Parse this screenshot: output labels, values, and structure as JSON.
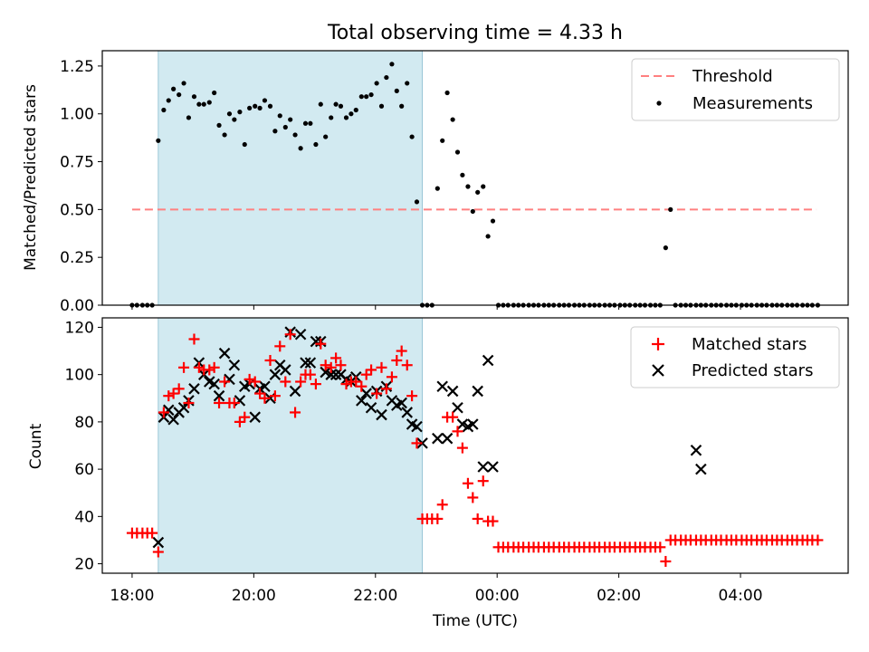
{
  "figure": {
    "title": "Total observing time = 4.33 h",
    "xlabel": "Time (UTC)",
    "xticks": [
      "18:00",
      "20:00",
      "22:00",
      "00:00",
      "02:00",
      "04:00"
    ],
    "shade_color": "#add8e6",
    "shaded_interval_h": [
      18.43,
      22.77
    ]
  },
  "chart_data": [
    {
      "type": "scatter",
      "ylabel": "Matched/Predicted stars",
      "ylim": [
        0,
        1.33
      ],
      "yticks": [
        "0.00",
        "0.25",
        "0.50",
        "0.75",
        "1.00",
        "1.25"
      ],
      "threshold": {
        "name": "Threshold",
        "value": 0.5,
        "x_range_h": [
          18.0,
          29.25
        ],
        "color": "#ff8080"
      },
      "series": [
        {
          "name": "Measurements",
          "color": "#000000",
          "x": [
            18.0,
            18.08,
            18.17,
            18.25,
            18.33,
            18.43,
            18.52,
            18.6,
            18.68,
            18.77,
            18.85,
            18.93,
            19.02,
            19.1,
            19.18,
            19.27,
            19.35,
            19.43,
            19.52,
            19.6,
            19.68,
            19.77,
            19.85,
            19.93,
            20.02,
            20.1,
            20.18,
            20.27,
            20.35,
            20.43,
            20.52,
            20.6,
            20.68,
            20.77,
            20.85,
            20.93,
            21.02,
            21.1,
            21.18,
            21.27,
            21.35,
            21.43,
            21.52,
            21.6,
            21.68,
            21.77,
            21.85,
            21.93,
            22.02,
            22.1,
            22.18,
            22.27,
            22.35,
            22.43,
            22.52,
            22.6,
            22.68,
            22.77,
            22.85,
            22.93,
            23.02,
            23.1,
            23.18,
            23.27,
            23.35,
            23.43,
            23.52,
            23.6,
            23.68,
            23.77,
            23.85,
            23.93,
            24.02,
            24.1,
            24.18,
            24.27,
            24.35,
            24.43,
            24.52,
            24.6,
            24.68,
            24.77,
            24.85,
            24.93,
            25.02,
            25.1,
            25.18,
            25.27,
            25.35,
            25.43,
            25.52,
            25.6,
            25.68,
            25.77,
            25.85,
            25.93,
            26.02,
            26.1,
            26.18,
            26.27,
            26.35,
            26.43,
            26.52,
            26.6,
            26.68,
            26.77,
            26.85,
            26.93,
            27.02,
            27.1,
            27.18,
            27.27,
            27.35,
            27.43,
            27.52,
            27.6,
            27.68,
            27.77,
            27.85,
            27.93,
            28.02,
            28.1,
            28.18,
            28.27,
            28.35,
            28.43,
            28.52,
            28.6,
            28.68,
            28.77,
            28.85,
            28.93,
            29.02,
            29.1,
            29.18,
            29.27
          ],
          "y": [
            0,
            0,
            0,
            0,
            0,
            0.86,
            1.02,
            1.07,
            1.13,
            1.1,
            1.16,
            0.98,
            1.09,
            1.05,
            1.05,
            1.06,
            1.11,
            0.94,
            0.89,
            1.0,
            0.97,
            1.01,
            0.84,
            1.03,
            1.04,
            1.03,
            1.07,
            1.04,
            0.91,
            0.99,
            0.93,
            0.97,
            0.89,
            0.82,
            0.95,
            0.95,
            0.84,
            1.05,
            0.88,
            0.98,
            1.05,
            1.04,
            0.98,
            1.0,
            1.02,
            1.09,
            1.09,
            1.1,
            1.16,
            1.04,
            1.19,
            1.26,
            1.12,
            1.04,
            1.16,
            0.88,
            0.54,
            0,
            0,
            0,
            0.61,
            0.86,
            1.11,
            0.97,
            0.8,
            0.68,
            0.62,
            0.49,
            0.59,
            0.62,
            0.36,
            0.44,
            0,
            0,
            0,
            0,
            0,
            0,
            0,
            0,
            0,
            0,
            0,
            0,
            0,
            0,
            0,
            0,
            0,
            0,
            0,
            0,
            0,
            0,
            0,
            0,
            0,
            0,
            0,
            0,
            0,
            0,
            0,
            0,
            0,
            0.3,
            0.5,
            0,
            0,
            0,
            0,
            0,
            0,
            0,
            0,
            0,
            0,
            0,
            0,
            0,
            0,
            0,
            0,
            0,
            0,
            0,
            0,
            0,
            0,
            0,
            0,
            0,
            0,
            0,
            0,
            0
          ]
        }
      ]
    },
    {
      "type": "scatter",
      "ylabel": "Count",
      "ylim": [
        16,
        124
      ],
      "yticks": [
        "20",
        "40",
        "60",
        "80",
        "100",
        "120"
      ],
      "series": [
        {
          "name": "Matched stars",
          "marker": "+",
          "color": "#ff0000",
          "x": [
            18.0,
            18.08,
            18.17,
            18.25,
            18.33,
            18.43,
            18.52,
            18.6,
            18.68,
            18.77,
            18.85,
            18.93,
            19.02,
            19.1,
            19.18,
            19.27,
            19.35,
            19.43,
            19.52,
            19.6,
            19.68,
            19.77,
            19.85,
            19.93,
            20.02,
            20.1,
            20.18,
            20.27,
            20.35,
            20.43,
            20.52,
            20.6,
            20.68,
            20.77,
            20.85,
            20.93,
            21.02,
            21.1,
            21.18,
            21.27,
            21.35,
            21.43,
            21.52,
            21.6,
            21.68,
            21.77,
            21.85,
            21.93,
            22.02,
            22.1,
            22.18,
            22.27,
            22.35,
            22.43,
            22.52,
            22.6,
            22.68,
            22.77,
            22.85,
            22.93,
            23.02,
            23.1,
            23.18,
            23.27,
            23.35,
            23.43,
            23.52,
            23.6,
            23.68,
            23.77,
            23.85,
            23.93,
            24.02,
            24.1,
            24.18,
            24.27,
            24.35,
            24.43,
            24.52,
            24.6,
            24.68,
            24.77,
            24.85,
            24.93,
            25.02,
            25.1,
            25.18,
            25.27,
            25.35,
            25.43,
            25.52,
            25.6,
            25.68,
            25.77,
            25.85,
            25.93,
            26.02,
            26.1,
            26.18,
            26.27,
            26.35,
            26.43,
            26.52,
            26.6,
            26.68,
            26.77,
            26.85,
            26.93,
            27.02,
            27.1,
            27.18,
            27.27,
            27.35,
            27.43,
            27.52,
            27.6,
            27.68,
            27.77,
            27.85,
            27.93,
            28.02,
            28.1,
            28.18,
            28.27,
            28.35,
            28.43,
            28.52,
            28.6,
            28.68,
            28.77,
            28.85,
            28.93,
            29.02,
            29.1,
            29.18,
            29.27
          ],
          "y": [
            33,
            33,
            33,
            33,
            33,
            25,
            84,
            91,
            92,
            94,
            103,
            88,
            115,
            103,
            102,
            102,
            103,
            88,
            97,
            88,
            88,
            80,
            82,
            98,
            97,
            92,
            90,
            106,
            91,
            112,
            97,
            117,
            84,
            97,
            100,
            100,
            96,
            113,
            104,
            103,
            107,
            104,
            96,
            97,
            97,
            95,
            100,
            102,
            92,
            103,
            94,
            99,
            106,
            110,
            104,
            91,
            71,
            39,
            39,
            39,
            39,
            45,
            82,
            82,
            76,
            69,
            54,
            48,
            39,
            55,
            38,
            38,
            27,
            27,
            27,
            27,
            27,
            27,
            27,
            27,
            27,
            27,
            27,
            27,
            27,
            27,
            27,
            27,
            27,
            27,
            27,
            27,
            27,
            27,
            27,
            27,
            27,
            27,
            27,
            27,
            27,
            27,
            27,
            27,
            27,
            21,
            30,
            30,
            30,
            30,
            30,
            30,
            30,
            30,
            30,
            30,
            30,
            30,
            30,
            30,
            30,
            30,
            30,
            30,
            30,
            30,
            30,
            30,
            30,
            30,
            30,
            30,
            30,
            30,
            30,
            30
          ]
        },
        {
          "name": "Predicted stars",
          "marker": "x",
          "color": "#000000",
          "x": [
            18.43,
            18.52,
            18.6,
            18.68,
            18.77,
            18.85,
            18.93,
            19.02,
            19.1,
            19.18,
            19.27,
            19.35,
            19.43,
            19.52,
            19.6,
            19.68,
            19.77,
            19.85,
            19.93,
            20.02,
            20.1,
            20.18,
            20.27,
            20.35,
            20.43,
            20.52,
            20.6,
            20.68,
            20.77,
            20.85,
            20.93,
            21.02,
            21.1,
            21.18,
            21.27,
            21.35,
            21.43,
            21.52,
            21.6,
            21.68,
            21.77,
            21.85,
            21.93,
            22.02,
            22.1,
            22.18,
            22.27,
            22.35,
            22.43,
            22.52,
            22.6,
            22.68,
            22.77,
            23.02,
            23.1,
            23.18,
            23.27,
            23.35,
            23.43,
            23.52,
            23.6,
            23.68,
            23.77,
            23.85,
            23.93,
            27.27,
            27.35
          ],
          "y": [
            29,
            82,
            85,
            81,
            84,
            86,
            89,
            94,
            105,
            100,
            97,
            96,
            91,
            109,
            98,
            104,
            89,
            95,
            96,
            82,
            94,
            95,
            90,
            100,
            104,
            102,
            118,
            93,
            117,
            105,
            105,
            114,
            114,
            101,
            100,
            100,
            100,
            98,
            97,
            99,
            89,
            92,
            86,
            93,
            83,
            95,
            89,
            87,
            88,
            84,
            79,
            78,
            71,
            73,
            95,
            73,
            93,
            86,
            79,
            78,
            79,
            93,
            61,
            106,
            61,
            68,
            60
          ]
        }
      ]
    }
  ]
}
